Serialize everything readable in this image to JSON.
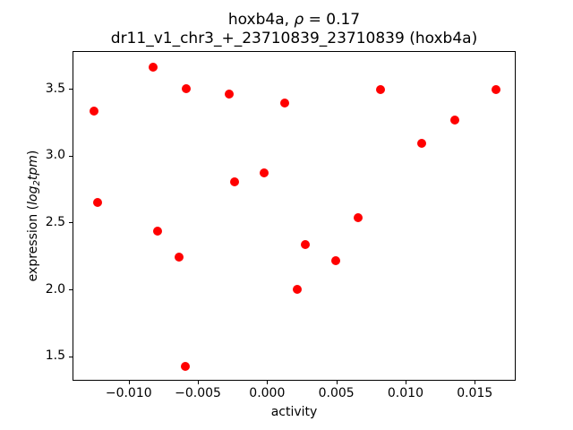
{
  "title": {
    "line1_pre": "hoxb4a, ",
    "line1_rho": "ρ",
    "line1_post": " = 0.17",
    "line2": "dr11_v1_chr3_+_23710839_23710839 (hoxb4a)"
  },
  "ylabel_parts": {
    "pre": "expression (",
    "log": "log",
    "sub": "2",
    "tpm": "tpm",
    "post": ")"
  },
  "chart_data": {
    "type": "scatter",
    "title": "hoxb4a, ρ = 0.17",
    "subtitle": "dr11_v1_chr3_+_23710839_23710839 (hoxb4a)",
    "xlabel": "activity",
    "ylabel": "expression (log2tpm)",
    "marker_color": "#ff0000",
    "marker_diameter_px": 10,
    "grid": false,
    "legend": "none",
    "xlim": [
      -0.01406,
      0.01796
    ],
    "ylim": [
      1.318,
      3.782
    ],
    "x_ticks": [
      -0.01,
      -0.005,
      0.0,
      0.005,
      0.01,
      0.015
    ],
    "x_tick_labels": [
      "−0.010",
      "−0.005",
      "0.000",
      "0.005",
      "0.010",
      "0.015"
    ],
    "y_ticks": [
      1.5,
      2.0,
      2.5,
      3.0,
      3.5
    ],
    "y_tick_labels": [
      "1.5",
      "2.0",
      "2.5",
      "3.0",
      "3.5"
    ],
    "points": [
      [
        -0.0126,
        3.34
      ],
      [
        -0.0123,
        2.66
      ],
      [
        -0.0083,
        3.67
      ],
      [
        -0.008,
        2.44
      ],
      [
        -0.0064,
        2.25
      ],
      [
        -0.006,
        1.43
      ],
      [
        -0.0059,
        3.51
      ],
      [
        -0.0028,
        3.47
      ],
      [
        -0.0024,
        2.81
      ],
      [
        -0.0003,
        2.88
      ],
      [
        0.0012,
        3.4
      ],
      [
        0.0021,
        2.01
      ],
      [
        0.0027,
        2.34
      ],
      [
        0.0049,
        2.22
      ],
      [
        0.0065,
        2.54
      ],
      [
        0.0081,
        3.5
      ],
      [
        0.0111,
        3.1
      ],
      [
        0.0135,
        3.27
      ],
      [
        0.0165,
        3.5
      ]
    ]
  }
}
